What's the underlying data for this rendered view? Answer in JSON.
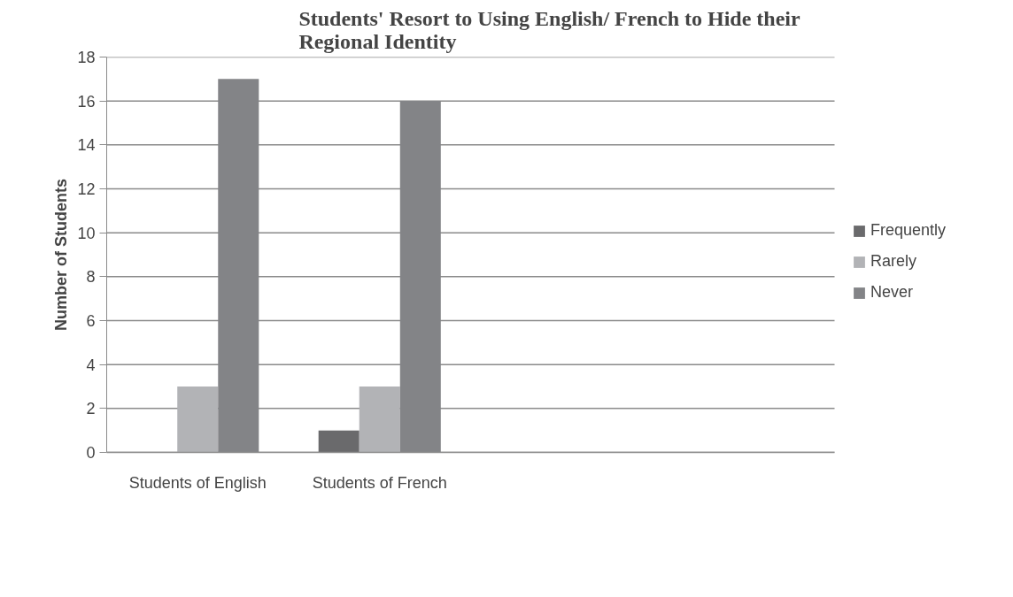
{
  "chart_data": {
    "type": "bar",
    "title": "Students' Resort to Using English/ French to Hide their Regional Identity",
    "ylabel": "Number of Students",
    "categories": [
      "Students of English",
      "Students of French",
      null,
      null
    ],
    "series": [
      {
        "name": "Frequently",
        "color": "#6a6a6c",
        "values": [
          0,
          1,
          null,
          null
        ]
      },
      {
        "name": "Rarely",
        "color": "#b2b3b6",
        "values": [
          3,
          3,
          null,
          null
        ]
      },
      {
        "name": "Never",
        "color": "#838487",
        "values": [
          17,
          16,
          null,
          null
        ]
      }
    ],
    "ylim": [
      0,
      18
    ],
    "yticks": [
      0,
      2,
      4,
      6,
      8,
      10,
      12,
      14,
      16,
      18
    ],
    "grid": "y",
    "legend": "right"
  }
}
